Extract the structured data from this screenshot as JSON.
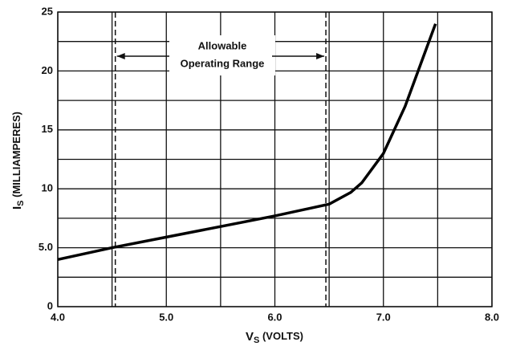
{
  "chart_data": {
    "type": "line",
    "xlabel": {
      "symbol": "V",
      "subscript": "S",
      "text": " (VOLTS)"
    },
    "ylabel": {
      "symbol": "I",
      "subscript": "S",
      "text": " (MILLIAMPERES)"
    },
    "x": [
      4.0,
      4.5,
      5.0,
      5.5,
      6.0,
      6.5,
      6.7,
      6.8,
      7.0,
      7.2,
      7.4,
      7.48
    ],
    "series": [
      {
        "color": "#000000",
        "values": [
          4.0,
          5.0,
          5.9,
          6.8,
          7.7,
          8.7,
          9.7,
          10.5,
          13.0,
          17.0,
          22.0,
          24.0
        ]
      }
    ],
    "xlim": [
      4.0,
      8.0
    ],
    "xticks": [
      {
        "value": 4,
        "label": "4.0"
      },
      {
        "value": 5,
        "label": "5.0"
      },
      {
        "value": 6,
        "label": "6.0"
      },
      {
        "value": 7,
        "label": "7.0"
      },
      {
        "value": 8,
        "label": "8.0"
      }
    ],
    "x_minor_ticks": [
      4.5,
      5.5,
      6.5,
      7.5
    ],
    "ylim": [
      0,
      25
    ],
    "yticks": [
      0,
      {
        "value": 5,
        "label": "5.0"
      },
      10,
      15,
      20,
      25
    ],
    "y_minor_ticks": [
      2.5,
      7.5,
      12.5,
      17.5,
      22.5
    ],
    "grid": true,
    "annotation": {
      "lines": [
        "Allowable",
        "Operating Range"
      ],
      "x_range": [
        4.53,
        6.47
      ]
    }
  }
}
